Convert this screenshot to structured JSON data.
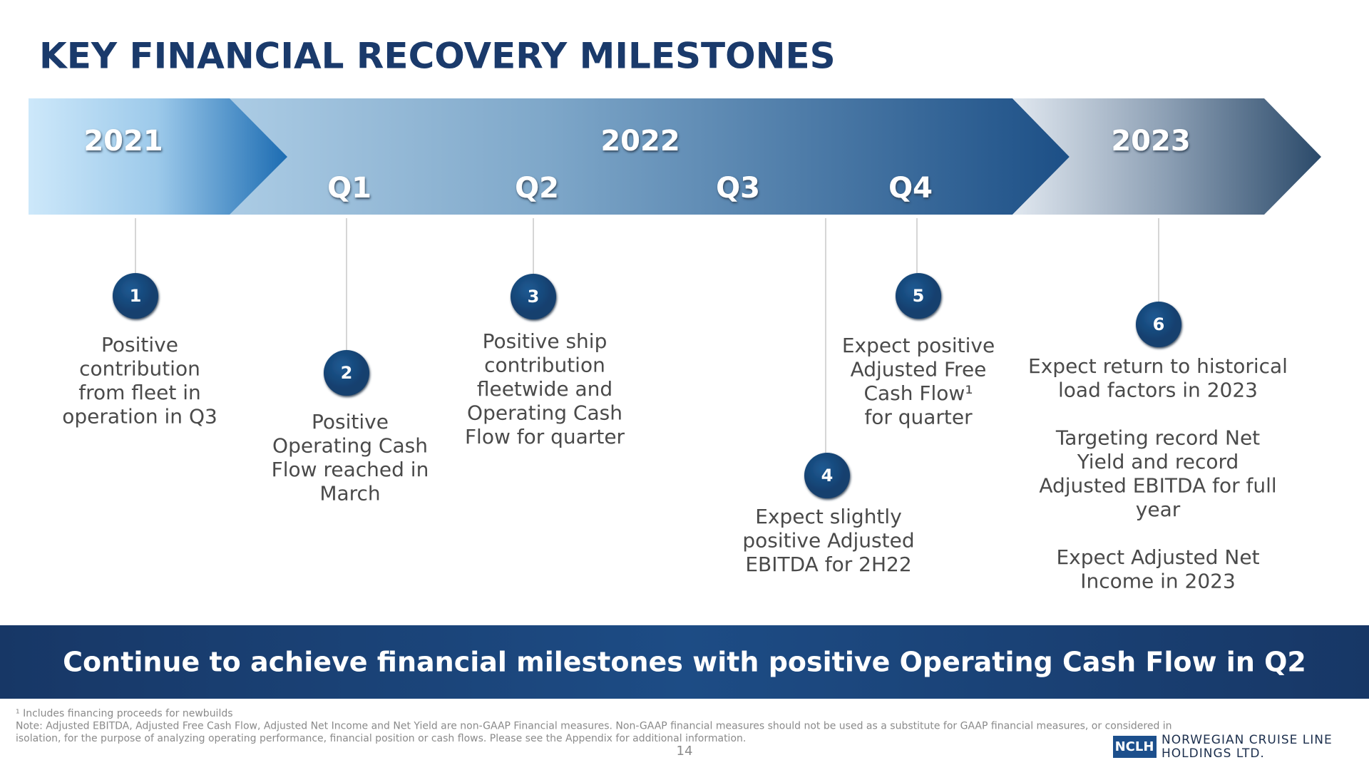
{
  "title": "KEY FINANCIAL RECOVERY MILESTONES",
  "timeline": {
    "years": [
      "2021",
      "2022",
      "2023"
    ],
    "quarters": [
      "Q1",
      "Q2",
      "Q3",
      "Q4"
    ]
  },
  "milestones": [
    {
      "number": "1",
      "paragraphs": [
        [
          "Positive",
          "contribution",
          "from fleet in",
          "operation in Q3"
        ]
      ]
    },
    {
      "number": "2",
      "paragraphs": [
        [
          "Positive",
          "Operating Cash",
          "Flow reached in",
          "March"
        ]
      ]
    },
    {
      "number": "3",
      "paragraphs": [
        [
          "Positive ship",
          "contribution",
          "fleetwide and",
          "Operating Cash",
          "Flow for quarter"
        ]
      ]
    },
    {
      "number": "4",
      "paragraphs": [
        [
          "Expect slightly",
          "positive Adjusted",
          "EBITDA for 2H22"
        ]
      ]
    },
    {
      "number": "5",
      "paragraphs": [
        [
          "Expect positive",
          "Adjusted Free",
          "Cash Flow¹",
          "for quarter"
        ]
      ]
    },
    {
      "number": "6",
      "paragraphs": [
        [
          "Expect return to historical",
          "load factors in 2023"
        ],
        [
          "Targeting record Net",
          "Yield and record",
          "Adjusted EBITDA for full",
          "year"
        ],
        [
          "Expect Adjusted Net",
          "Income in 2023"
        ]
      ]
    }
  ],
  "banner": "Continue to achieve financial milestones with positive Operating Cash Flow in Q2",
  "footnotes": [
    "¹ Includes financing proceeds for newbuilds",
    "Note: Adjusted EBITDA, Adjusted Free Cash Flow, Adjusted Net Income and Net Yield are non-GAAP Financial measures. Non-GAAP financial measures should not be used as a substitute for GAAP financial measures, or considered in",
    "isolation, for the purpose of analyzing operating performance, financial position or cash flows. Please see the Appendix for additional information."
  ],
  "page_number": "14",
  "logo": {
    "mark": "NCLH",
    "name_lines": [
      "NORWEGIAN CRUISE LINE",
      "HOLDINGS LTD."
    ]
  }
}
